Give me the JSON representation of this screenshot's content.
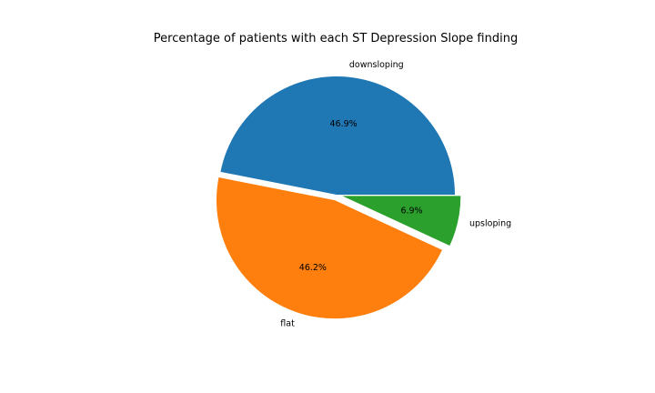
{
  "chart_data": {
    "type": "pie",
    "title": "Percentage of patients with each ST Depression Slope finding",
    "slices": [
      {
        "label": "downsloping",
        "value": 46.9,
        "pct_label": "46.9%",
        "color": "#1f77b4",
        "explode": 0.0
      },
      {
        "label": "flat",
        "value": 46.2,
        "pct_label": "46.2%",
        "color": "#ff7f0e",
        "explode": 0.05
      },
      {
        "label": "upsloping",
        "value": 6.9,
        "pct_label": "6.9%",
        "color": "#2ca02c",
        "explode": 0.05
      }
    ],
    "start_angle_deg": 0,
    "counterclockwise": true,
    "legend": "none"
  }
}
